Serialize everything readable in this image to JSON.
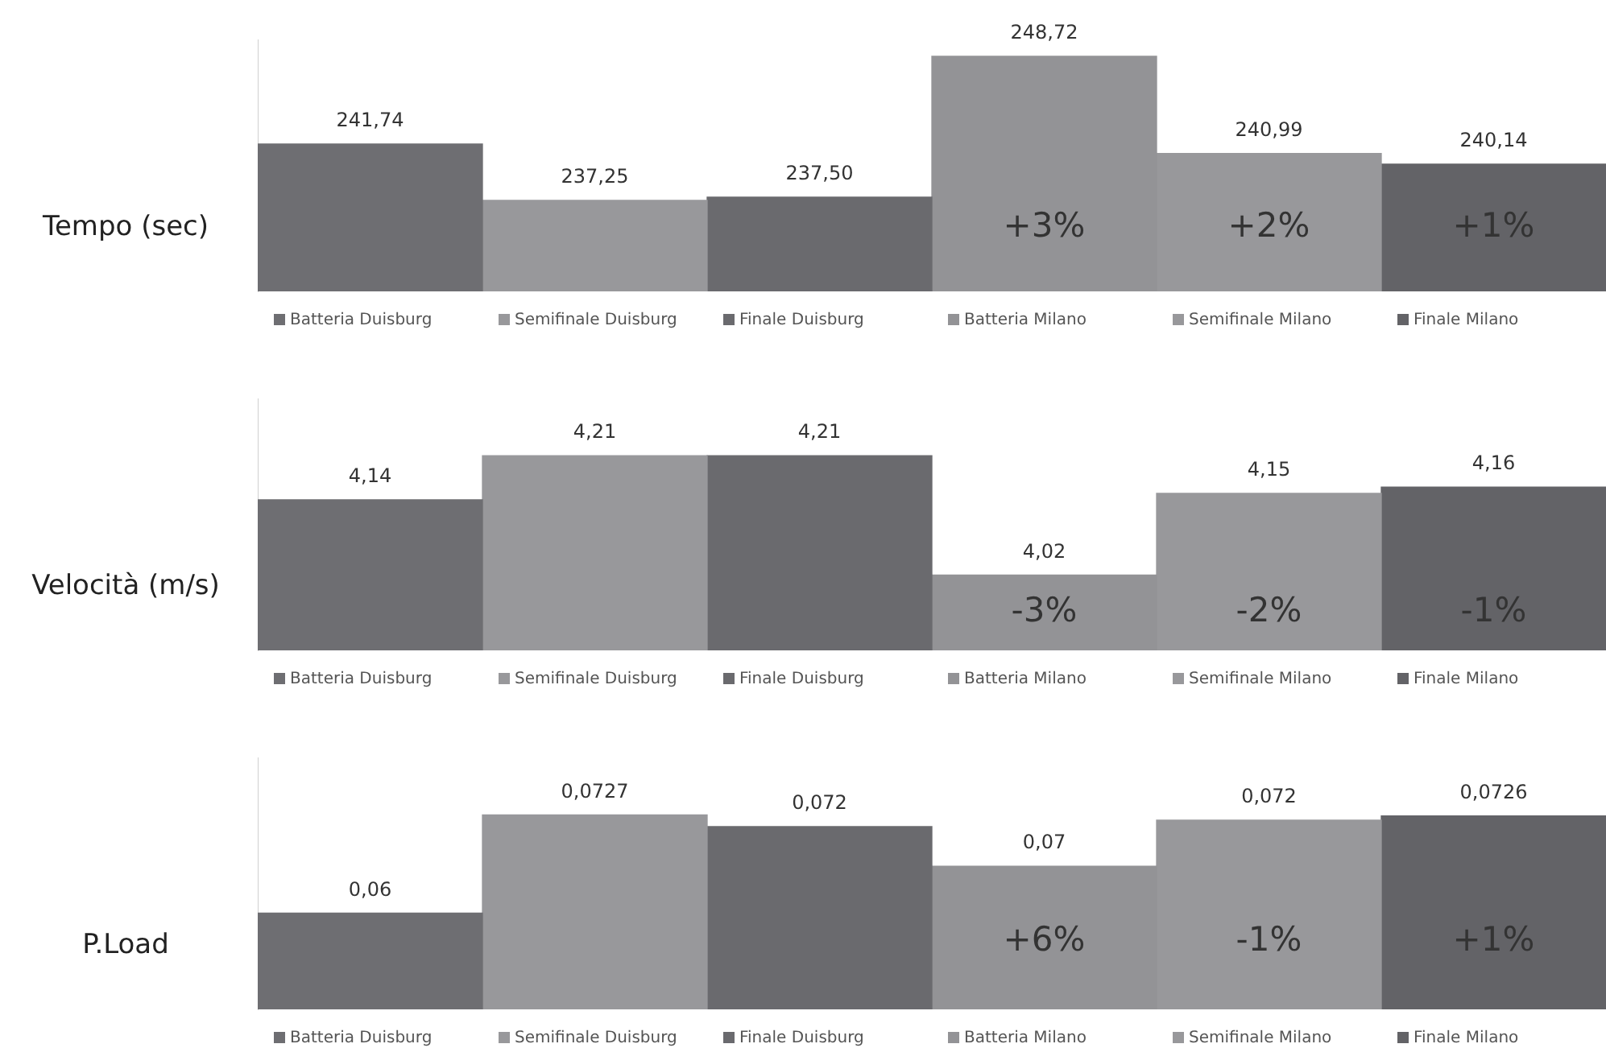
{
  "chart_data": [
    {
      "type": "bar",
      "ylabel": "Tempo (sec)",
      "categories": [
        null
      ],
      "series": [
        {
          "name": "Batteria Duisburg",
          "color": "#6e6e72",
          "values": [
            241.74
          ],
          "value_labels": [
            "241,74"
          ]
        },
        {
          "name": "Semifinale Duisburg",
          "color": "#98989b",
          "values": [
            237.25
          ],
          "value_labels": [
            "237,25"
          ]
        },
        {
          "name": "Finale Duisburg",
          "color": "#6a6a6e",
          "values": [
            237.5
          ],
          "value_labels": [
            "237,50"
          ]
        },
        {
          "name": "Batteria Milano",
          "color": "#939396",
          "values": [
            248.72
          ],
          "value_labels": [
            "248,72"
          ]
        },
        {
          "name": "Semifinale Milano",
          "color": "#98989b",
          "values": [
            240.99
          ],
          "value_labels": [
            "240,99"
          ]
        },
        {
          "name": "Finale Milano",
          "color": "#636367",
          "values": [
            240.14
          ],
          "value_labels": [
            "240,14"
          ]
        }
      ],
      "ylim": [
        230,
        250
      ],
      "annotations": [
        "+3%",
        "+2%",
        "+1%"
      ],
      "legend": "bottom",
      "tick_labels": false
    },
    {
      "type": "bar",
      "ylabel": "Velocità (m/s)",
      "categories": [
        null
      ],
      "series": [
        {
          "name": "Batteria Duisburg",
          "color": "#6e6e72",
          "values": [
            4.14
          ],
          "value_labels": [
            "4,14"
          ]
        },
        {
          "name": "Semifinale Duisburg",
          "color": "#98989b",
          "values": [
            4.21
          ],
          "value_labels": [
            "4,21"
          ]
        },
        {
          "name": "Finale Duisburg",
          "color": "#6a6a6e",
          "values": [
            4.21
          ],
          "value_labels": [
            "4,21"
          ]
        },
        {
          "name": "Batteria Milano",
          "color": "#939396",
          "values": [
            4.02
          ],
          "value_labels": [
            "4,02"
          ]
        },
        {
          "name": "Semifinale Milano",
          "color": "#98989b",
          "values": [
            4.15
          ],
          "value_labels": [
            "4,15"
          ]
        },
        {
          "name": "Finale Milano",
          "color": "#636367",
          "values": [
            4.16
          ],
          "value_labels": [
            "4,16"
          ]
        }
      ],
      "ylim": [
        3.9,
        4.3
      ],
      "annotations": [
        "-3%",
        "-2%",
        "-1%"
      ],
      "legend": "bottom",
      "tick_labels": false
    },
    {
      "type": "bar",
      "ylabel": "P.Load",
      "categories": [
        null
      ],
      "series": [
        {
          "name": "Batteria Duisburg",
          "color": "#6e6e72",
          "values": [
            0.0635
          ],
          "value_labels": [
            "0,06"
          ]
        },
        {
          "name": "Semifinale Duisburg",
          "color": "#98989b",
          "values": [
            0.0727
          ],
          "value_labels": [
            "0,0727"
          ]
        },
        {
          "name": "Finale Duisburg",
          "color": "#6a6a6e",
          "values": [
            0.0716
          ],
          "value_labels": [
            "0,072"
          ]
        },
        {
          "name": "Batteria Milano",
          "color": "#939396",
          "values": [
            0.0679
          ],
          "value_labels": [
            "0,07"
          ]
        },
        {
          "name": "Semifinale Milano",
          "color": "#98989b",
          "values": [
            0.0722
          ],
          "value_labels": [
            "0,072"
          ]
        },
        {
          "name": "Finale Milano",
          "color": "#636367",
          "values": [
            0.0726
          ],
          "value_labels": [
            "0,0726"
          ]
        }
      ],
      "ylim": [
        0.0545,
        0.078
      ],
      "annotations": [
        "+6%",
        "-1%",
        "+1%"
      ],
      "legend": "bottom",
      "tick_labels": false
    }
  ]
}
